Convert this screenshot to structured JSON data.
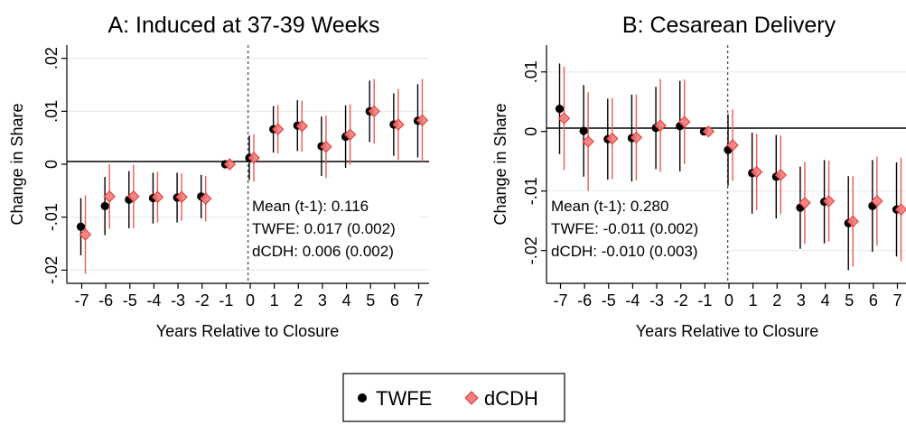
{
  "chart_data": [
    {
      "type": "scatter",
      "title": "A: Induced at 37-39 Weeks",
      "xlabel": "Years Relative to Closure",
      "ylabel": "Change in Share",
      "x": [
        -7,
        -6,
        -5,
        -4,
        -3,
        -2,
        -1,
        0,
        1,
        2,
        3,
        4,
        5,
        6,
        7
      ],
      "x_ticks": [
        "-7",
        "-6",
        "-5",
        "-4",
        "-3",
        "-2",
        "-1",
        "0",
        "1",
        "2",
        "3",
        "4",
        "5",
        "6",
        "7"
      ],
      "y_ticks": [
        "-.02",
        "-.01",
        "0",
        ".01",
        ".02"
      ],
      "y_tick_values": [
        -0.02,
        -0.01,
        0,
        0.01,
        0.02
      ],
      "ylim": [
        -0.0225,
        0.0225
      ],
      "xlim": [
        -7.5,
        7.5
      ],
      "grid": true,
      "series": [
        {
          "name": "TWFE",
          "color": "#000000",
          "marker": "circle",
          "values": [
            -0.0118,
            -0.0079,
            -0.0067,
            -0.0064,
            -0.0063,
            -0.0061,
            0,
            0.0012,
            0.0066,
            0.0073,
            0.0034,
            0.0052,
            0.01,
            0.0075,
            0.0082
          ],
          "ci_low": [
            -0.0172,
            -0.0134,
            -0.0121,
            -0.0112,
            -0.011,
            -0.0102,
            0,
            -0.003,
            0.0022,
            0.0025,
            -0.0022,
            -0.0007,
            0.0042,
            0.0016,
            0.0013
          ],
          "ci_high": [
            -0.0064,
            -0.0024,
            -0.0013,
            -0.0016,
            -0.0016,
            -0.002,
            0,
            0.0054,
            0.011,
            0.0121,
            0.009,
            0.0111,
            0.0158,
            0.0134,
            0.0151
          ]
        },
        {
          "name": "dCDH",
          "color": "#e8312c",
          "marker": "diamond",
          "values": [
            -0.0133,
            -0.0061,
            -0.0061,
            -0.0062,
            -0.0062,
            -0.0065,
            0,
            0.0012,
            0.0066,
            0.0072,
            0.0033,
            0.0056,
            0.01,
            0.0075,
            0.0083
          ],
          "ci_low": [
            -0.0207,
            -0.0122,
            -0.0121,
            -0.011,
            -0.0107,
            -0.0108,
            0,
            -0.0033,
            0.002,
            0.0024,
            -0.0026,
            -0.0001,
            0.0039,
            0.0008,
            0.0005
          ],
          "ci_high": [
            -0.0059,
            0.0,
            -0.0001,
            -0.0014,
            -0.0017,
            -0.0022,
            0,
            0.0057,
            0.0112,
            0.012,
            0.0092,
            0.0113,
            0.0161,
            0.0142,
            0.0161
          ]
        }
      ],
      "annotations": [
        "Mean (t-1): 0.116",
        "TWFE: 0.017 (0.002)",
        "dCDH: 0.006 (0.002)"
      ]
    },
    {
      "type": "scatter",
      "title": "B: Cesarean Delivery",
      "xlabel": "Years Relative to Closure",
      "ylabel": "Change in Share",
      "x": [
        -7,
        -6,
        -5,
        -4,
        -3,
        -2,
        -1,
        0,
        1,
        2,
        3,
        4,
        5,
        6,
        7
      ],
      "x_ticks": [
        "-7",
        "-6",
        "-5",
        "-4",
        "-3",
        "-2",
        "-1",
        "0",
        "1",
        "2",
        "3",
        "4",
        "5",
        "6",
        "7"
      ],
      "y_ticks": [
        "-.02",
        "-.01",
        "0",
        ".01"
      ],
      "y_tick_values": [
        -0.02,
        -0.01,
        0,
        0.01
      ],
      "ylim": [
        -0.0255,
        0.0145
      ],
      "xlim": [
        -7.5,
        7.2
      ],
      "grid": true,
      "series": [
        {
          "name": "TWFE",
          "color": "#000000",
          "marker": "circle",
          "values": [
            0.0038,
            0.0001,
            -0.0013,
            -0.0011,
            0.0006,
            0.0009,
            0,
            -0.0031,
            -0.007,
            -0.0076,
            -0.0128,
            -0.0118,
            -0.0154,
            -0.0125,
            -0.0131
          ],
          "ci_low": [
            -0.0038,
            -0.0076,
            -0.0081,
            -0.0084,
            -0.0063,
            -0.0067,
            0,
            -0.0091,
            -0.0138,
            -0.0146,
            -0.0197,
            -0.0188,
            -0.0233,
            -0.0202,
            -0.021
          ],
          "ci_high": [
            0.0114,
            0.0078,
            0.0055,
            0.0062,
            0.0075,
            0.0085,
            0,
            0.0029,
            -0.0002,
            -0.0006,
            -0.0059,
            -0.0048,
            -0.0075,
            -0.0048,
            -0.0052
          ]
        },
        {
          "name": "dCDH",
          "color": "#e8312c",
          "marker": "diamond",
          "values": [
            0.0022,
            -0.0017,
            -0.0012,
            -0.001,
            0.001,
            0.0016,
            0,
            -0.0023,
            -0.0068,
            -0.0073,
            -0.012,
            -0.0117,
            -0.0151,
            -0.0117,
            -0.0131
          ],
          "ci_low": [
            -0.0065,
            -0.01,
            -0.008,
            -0.0082,
            -0.0068,
            -0.0055,
            0,
            -0.0083,
            -0.0132,
            -0.0139,
            -0.0189,
            -0.0185,
            -0.0227,
            -0.0192,
            -0.0218
          ],
          "ci_high": [
            0.0109,
            0.0066,
            0.0056,
            0.0062,
            0.0088,
            0.0087,
            0,
            0.0037,
            -0.0004,
            -0.0007,
            -0.0051,
            -0.0049,
            -0.0075,
            -0.0042,
            -0.0044
          ]
        }
      ],
      "annotations": [
        "Mean (t-1): 0.280",
        "TWFE: -0.011 (0.002)",
        "dCDH: -0.010 (0.003)"
      ]
    }
  ],
  "legend": {
    "placement": "bottom-center",
    "items": [
      {
        "label": "TWFE",
        "marker": "circle",
        "color": "#000000"
      },
      {
        "label": "dCDH",
        "marker": "diamond",
        "color": "#e8312c"
      }
    ]
  }
}
